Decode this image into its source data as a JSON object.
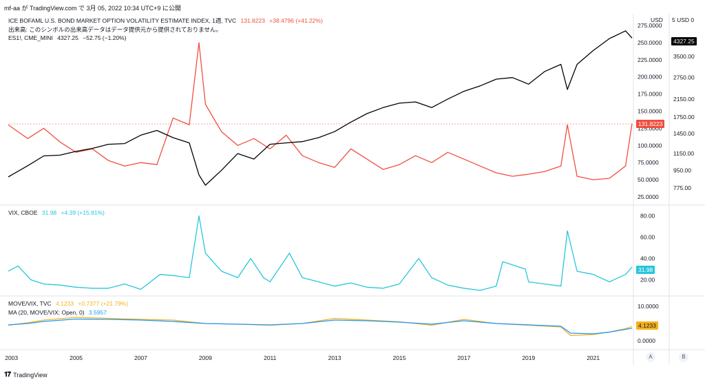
{
  "header": {
    "text": "mf-aa が TradingView.com で 3月 05, 2022 10:34 UTC+9 に公開"
  },
  "pane1": {
    "legend1": {
      "label": "ICE BOFAML U.S. BOND MARKET OPTION VOLATILITY ESTIMATE INDEX, 1週, TVC",
      "value": "131.8223",
      "change": "+38.4796 (+41.22%)",
      "color": "#f04e3e"
    },
    "legend2": {
      "label": "出来高: このシンボルの出来高データはデータ提供元から提供されておりません。"
    },
    "legend3": {
      "label": "ES1!, CME_MINI",
      "value": "4327.25",
      "change": "−52.75 (−1.20%)",
      "color": "#000000"
    },
    "currency": "USD",
    "left_ticks": [
      "275.0000",
      "250.0000",
      "225.0000",
      "200.0000",
      "175.0000",
      "150.0000",
      "125.0000",
      "100.0000",
      "75.0000",
      "50.0000",
      "25.0000"
    ],
    "right_ticks": [
      "5 USD 0",
      "4327.25",
      "3500.00",
      "2750.00",
      "2150.00",
      "1750.00",
      "1450.00",
      "1150.00",
      "950.00",
      "775.00"
    ],
    "move_tag": "131.8223",
    "es_tag": "4327.25"
  },
  "pane2": {
    "legend": {
      "label": "VIX, CBOE",
      "value": "31.98",
      "change": "+4.39 (+15.91%)",
      "color": "#26c6da"
    },
    "ticks": [
      "80.00",
      "60.00",
      "40.00",
      "20.00"
    ],
    "tag": "31.98"
  },
  "pane3": {
    "legend1": {
      "label": "MOVE/VIX, TVC",
      "value": "4.1233",
      "change": "+0.7377 (+21.79%)",
      "color": "#f5b21e"
    },
    "legend2": {
      "label": "MA (20, MOVE/VIX: Open, 0)",
      "value": "3.5957",
      "color": "#2196f3"
    },
    "ticks": [
      "10.0000",
      "5.0000",
      "0.0000"
    ],
    "tag": "4.1233"
  },
  "xaxis": {
    "labels": [
      "2003",
      "2005",
      "2007",
      "2009",
      "2011",
      "2013",
      "2015",
      "2017",
      "2019",
      "2021"
    ],
    "btn_a": "A",
    "btn_b": "B"
  },
  "footer": {
    "brand": "TradingView"
  },
  "chart_data": [
    {
      "type": "line",
      "title": "ICE BOFAML U.S. BOND MARKET OPTION VOLATILITY ESTIMATE INDEX (MOVE) and ES1!",
      "x": [
        2002.9,
        2003.5,
        2004.0,
        2004.5,
        2005.0,
        2005.5,
        2006.0,
        2006.5,
        2007.0,
        2007.5,
        2008.0,
        2008.5,
        2008.8,
        2009.0,
        2009.5,
        2010.0,
        2010.5,
        2011.0,
        2011.5,
        2012.0,
        2012.5,
        2013.0,
        2013.5,
        2014.0,
        2014.5,
        2015.0,
        2015.5,
        2016.0,
        2016.5,
        2017.0,
        2017.5,
        2018.0,
        2018.5,
        2019.0,
        2019.5,
        2020.0,
        2020.2,
        2020.5,
        2021.0,
        2021.5,
        2022.0,
        2022.2
      ],
      "series": [
        {
          "name": "ICE BOFAML U.S. BOND MARKET OPTION VOLATILITY ESTIMATE INDEX",
          "color": "#f04e3e",
          "axis": "left",
          "values": [
            130,
            110,
            125,
            105,
            90,
            95,
            78,
            70,
            75,
            72,
            140,
            130,
            250,
            160,
            120,
            100,
            110,
            95,
            115,
            85,
            75,
            68,
            95,
            80,
            65,
            72,
            85,
            75,
            90,
            80,
            70,
            60,
            55,
            58,
            62,
            70,
            130,
            55,
            50,
            52,
            70,
            131.82
          ]
        },
        {
          "name": "ES1!",
          "color": "#000000",
          "axis": "right",
          "values": [
            880,
            1000,
            1120,
            1130,
            1180,
            1220,
            1280,
            1290,
            1420,
            1500,
            1380,
            1300,
            900,
            800,
            950,
            1150,
            1080,
            1280,
            1300,
            1320,
            1380,
            1480,
            1650,
            1820,
            1950,
            2050,
            2080,
            1950,
            2150,
            2350,
            2500,
            2700,
            2750,
            2550,
            2950,
            3200,
            2400,
            3200,
            3750,
            4300,
            4700,
            4327.25
          ]
        }
      ],
      "ylim_left": [
        25,
        275
      ],
      "ylim_right": [
        700,
        5000
      ]
    },
    {
      "type": "line",
      "title": "VIX, CBOE",
      "x": [
        2002.9,
        2003.2,
        2003.6,
        2004.0,
        2004.5,
        2005.0,
        2005.5,
        2006.0,
        2006.5,
        2007.0,
        2007.6,
        2008.0,
        2008.5,
        2008.8,
        2009.0,
        2009.5,
        2010.0,
        2010.4,
        2010.8,
        2011.0,
        2011.6,
        2012.0,
        2012.5,
        2013.0,
        2013.5,
        2014.0,
        2014.5,
        2015.0,
        2015.6,
        2016.0,
        2016.5,
        2017.0,
        2017.5,
        2018.0,
        2018.2,
        2018.9,
        2019.0,
        2019.5,
        2020.0,
        2020.2,
        2020.5,
        2021.0,
        2021.5,
        2022.0,
        2022.2
      ],
      "series": [
        {
          "name": "VIX",
          "color": "#26c6da",
          "values": [
            28,
            33,
            20,
            16,
            15,
            13,
            12,
            12,
            16,
            11,
            25,
            24,
            22,
            80,
            45,
            28,
            22,
            40,
            22,
            18,
            45,
            22,
            18,
            14,
            17,
            13,
            12,
            16,
            40,
            22,
            15,
            12,
            10,
            14,
            37,
            30,
            18,
            16,
            14,
            66,
            28,
            25,
            18,
            25,
            31.98
          ]
        }
      ],
      "ylim": [
        8,
        85
      ]
    },
    {
      "type": "line",
      "title": "MOVE/VIX, TVC",
      "x": [
        2002.9,
        2003.5,
        2004.0,
        2005.0,
        2006.0,
        2007.0,
        2008.0,
        2009.0,
        2010.0,
        2011.0,
        2012.0,
        2013.0,
        2014.0,
        2015.0,
        2016.0,
        2017.0,
        2018.0,
        2019.0,
        2020.0,
        2020.3,
        2021.0,
        2021.5,
        2022.0,
        2022.2
      ],
      "series": [
        {
          "name": "MOVE/VIX",
          "color": "#f5b21e",
          "values": [
            4.5,
            5.2,
            6.0,
            6.8,
            6.5,
            6.2,
            6.0,
            5.0,
            4.8,
            4.5,
            5.0,
            6.5,
            6.0,
            5.5,
            4.5,
            6.2,
            5.0,
            4.5,
            4.0,
            1.5,
            1.8,
            2.5,
            3.5,
            4.12
          ]
        },
        {
          "name": "MA (20, MOVE/VIX: Open, 0)",
          "color": "#2196f3",
          "values": [
            4.6,
            5.0,
            5.6,
            6.3,
            6.2,
            6.0,
            5.6,
            5.0,
            4.8,
            4.6,
            5.0,
            6.0,
            5.8,
            5.4,
            4.8,
            5.8,
            5.0,
            4.6,
            4.2,
            2.2,
            2.0,
            2.5,
            3.3,
            3.6
          ]
        }
      ],
      "ylim": [
        0,
        10
      ]
    }
  ]
}
